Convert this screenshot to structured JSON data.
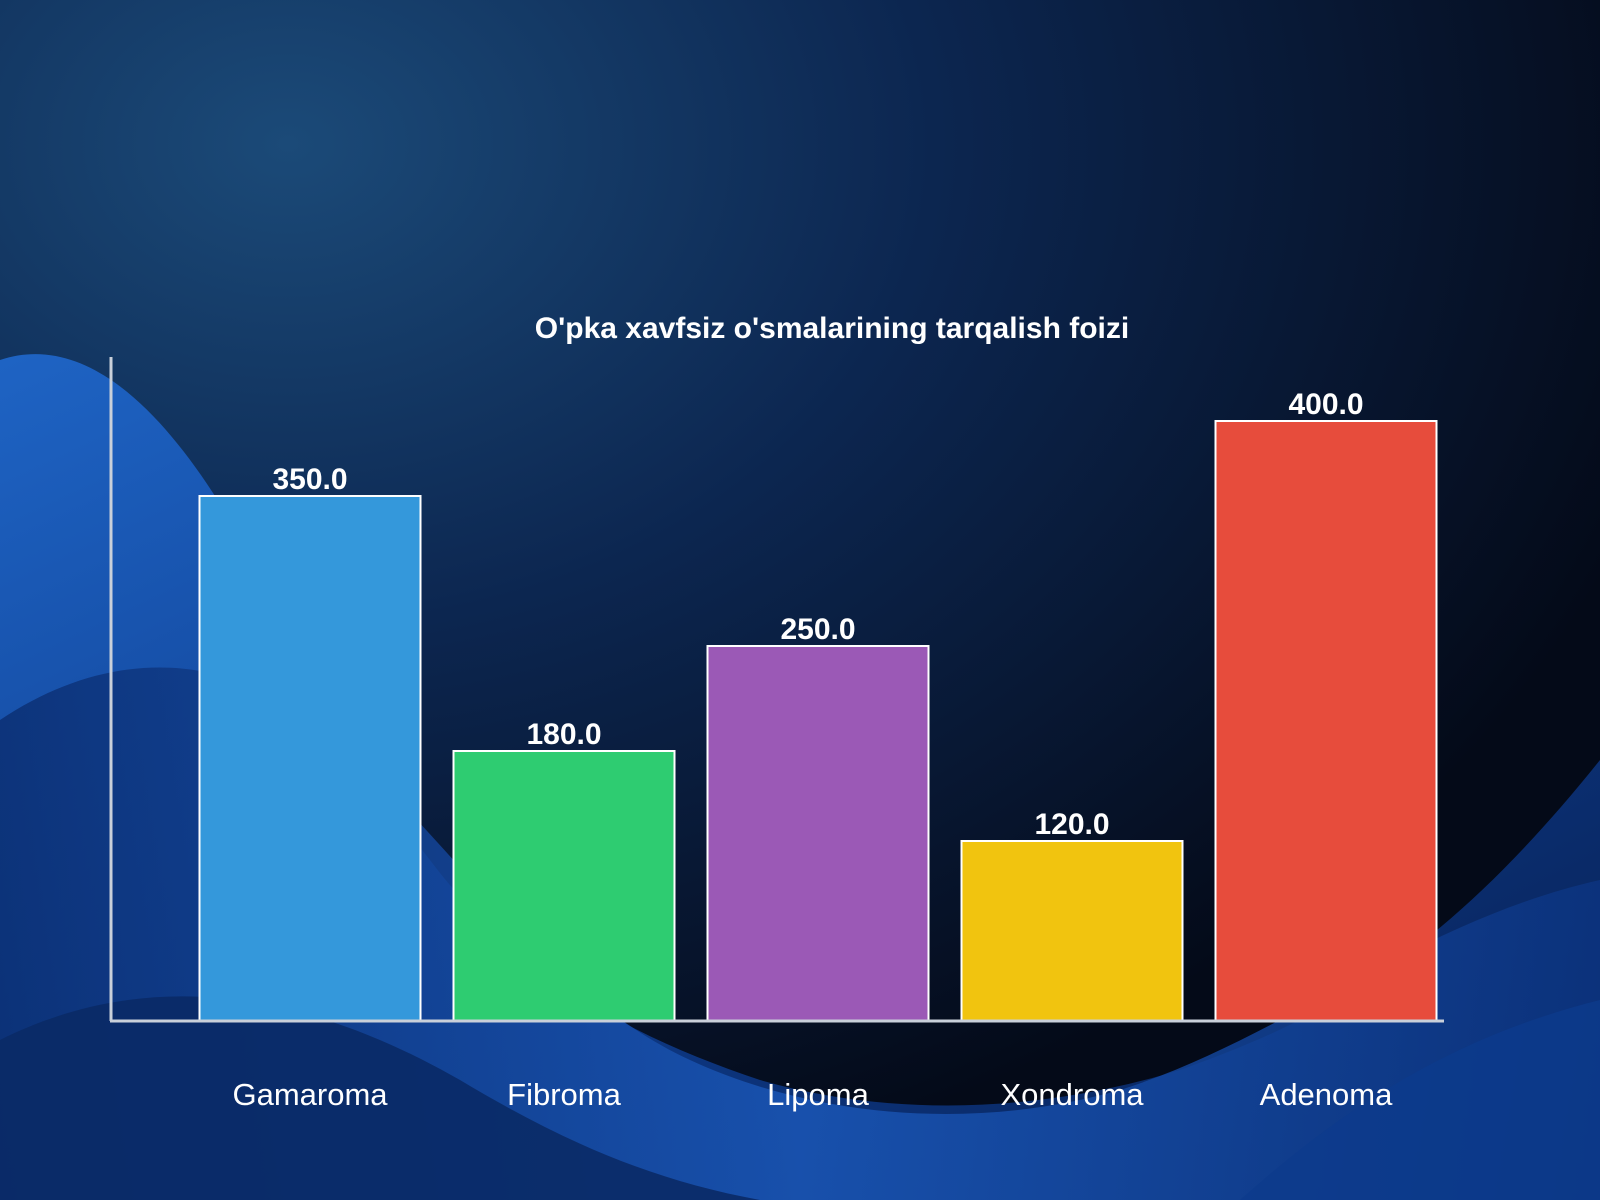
{
  "chart_data": {
    "type": "bar",
    "title": "O'pka xavfsiz o'smalarining tarqalish foizi",
    "xlabel": "",
    "ylabel": "",
    "categories": [
      "Gamaroma",
      "Fibroma",
      "Lipoma",
      "Xondroma",
      "Adenoma"
    ],
    "values": [
      350.0,
      180.0,
      250.0,
      120.0,
      400.0
    ],
    "value_labels": [
      "350.0",
      "180.0",
      "250.0",
      "120.0",
      "400.0"
    ],
    "colors": [
      "#3498db",
      "#2ecc71",
      "#9b59b6",
      "#f1c40f",
      "#e74c3c"
    ],
    "ylim": [
      0,
      440
    ],
    "grid": false,
    "legend": "none"
  },
  "theme": {
    "background": "#081733",
    "accent_wave": "#1a57b8",
    "axis_color": "#c9d0da",
    "text_color": "#ffffff",
    "bar_border": "#ffffff"
  }
}
